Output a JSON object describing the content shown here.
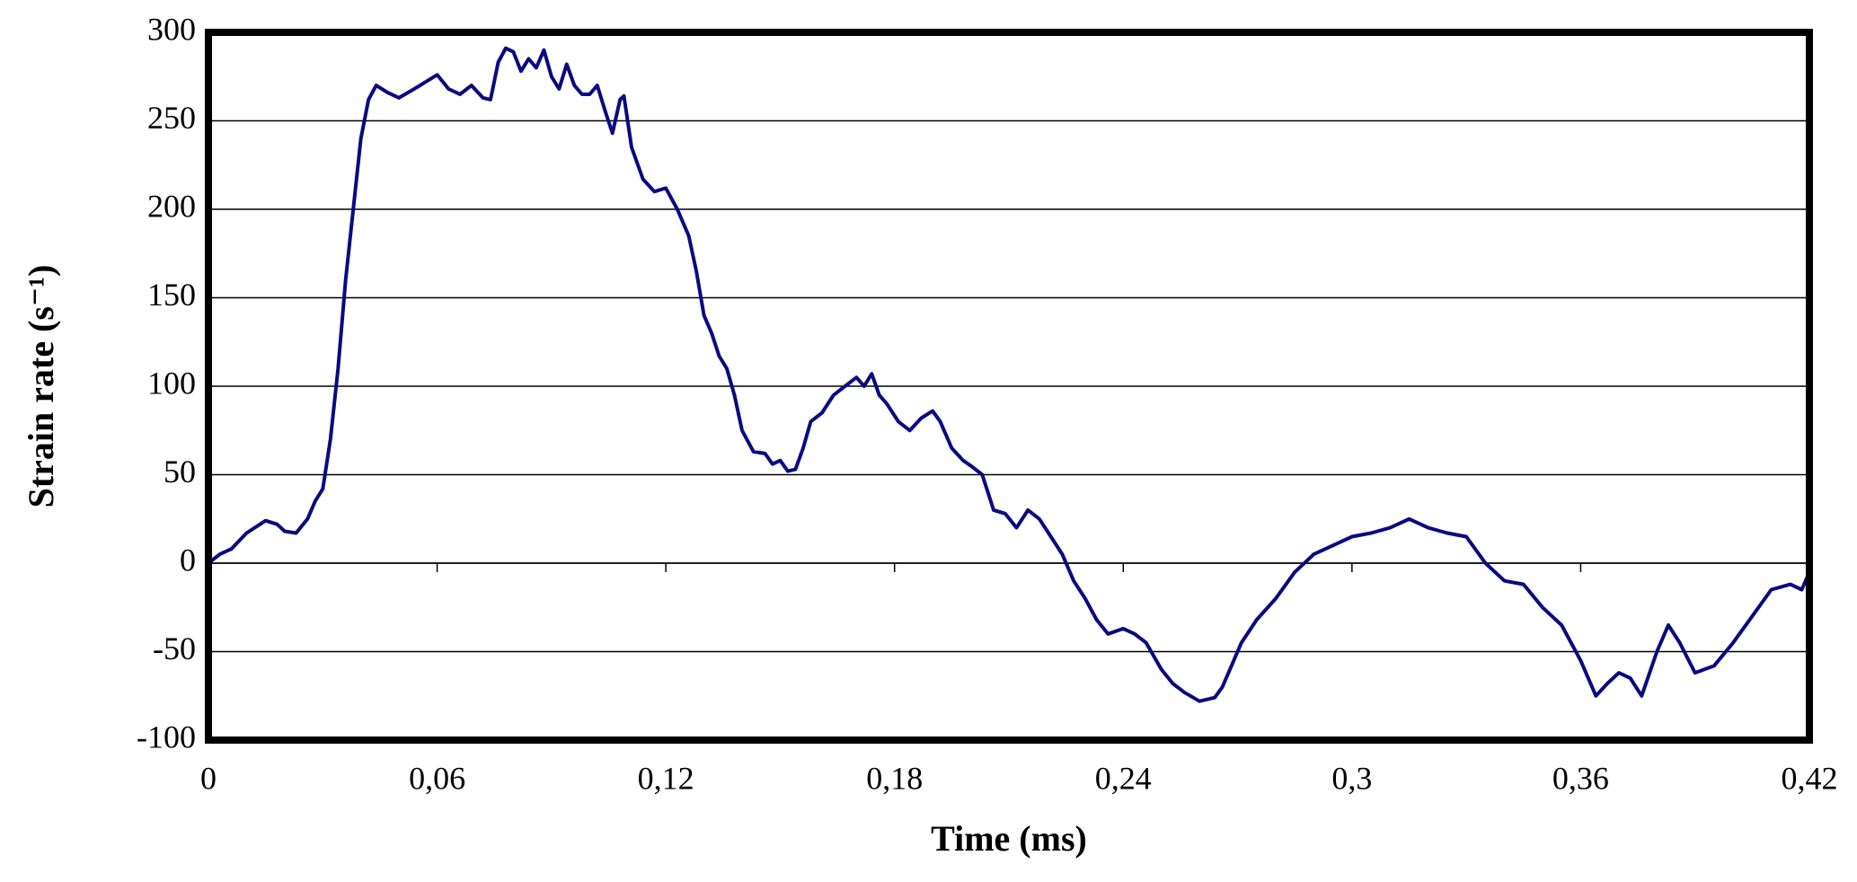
{
  "chart_data": {
    "type": "line",
    "xlabel": "Time (ms)",
    "ylabel": "Strain rate (s⁻¹)",
    "xlim": [
      0,
      0.42
    ],
    "xticks": [
      0,
      {
        "value": 0.06,
        "label": "0,06"
      },
      {
        "value": 0.12,
        "label": "0,12"
      },
      {
        "value": 0.18,
        "label": "0,18"
      },
      {
        "value": 0.24,
        "label": "0,24"
      },
      {
        "value": 0.3,
        "label": "0,3"
      },
      {
        "value": 0.36,
        "label": "0,36"
      },
      {
        "value": 0.42,
        "label": "0,42"
      }
    ],
    "ylim": [
      -100,
      300
    ],
    "yticks": [
      -100,
      -50,
      0,
      50,
      100,
      150,
      200,
      250,
      300
    ],
    "grid": true,
    "series": [
      {
        "color": "#0a0a80",
        "x": [
          0,
          0.003,
          0.006,
          0.01,
          0.015,
          0.018,
          0.02,
          0.023,
          0.026,
          0.028,
          0.03,
          0.032,
          0.034,
          0.036,
          0.038,
          0.04,
          0.042,
          0.044,
          0.047,
          0.05,
          0.054,
          0.057,
          0.06,
          0.063,
          0.066,
          0.069,
          0.072,
          0.074,
          0.076,
          0.078,
          0.08,
          0.082,
          0.084,
          0.086,
          0.088,
          0.09,
          0.092,
          0.094,
          0.096,
          0.098,
          0.1,
          0.102,
          0.104,
          0.106,
          0.108,
          0.109,
          0.111,
          0.114,
          0.117,
          0.12,
          0.123,
          0.126,
          0.128,
          0.13,
          0.132,
          0.134,
          0.136,
          0.138,
          0.14,
          0.143,
          0.146,
          0.148,
          0.15,
          0.152,
          0.154,
          0.156,
          0.158,
          0.161,
          0.164,
          0.167,
          0.17,
          0.172,
          0.174,
          0.176,
          0.178,
          0.181,
          0.184,
          0.187,
          0.19,
          0.192,
          0.195,
          0.198,
          0.2,
          0.203,
          0.206,
          0.209,
          0.212,
          0.215,
          0.218,
          0.221,
          0.224,
          0.227,
          0.23,
          0.233,
          0.236,
          0.24,
          0.243,
          0.246,
          0.25,
          0.253,
          0.256,
          0.26,
          0.264,
          0.266,
          0.268,
          0.271,
          0.275,
          0.28,
          0.285,
          0.29,
          0.295,
          0.3,
          0.305,
          0.31,
          0.315,
          0.32,
          0.325,
          0.33,
          0.335,
          0.34,
          0.345,
          0.35,
          0.355,
          0.36,
          0.364,
          0.367,
          0.37,
          0.373,
          0.376,
          0.38,
          0.383,
          0.386,
          0.39,
          0.395,
          0.4,
          0.405,
          0.41,
          0.415,
          0.418,
          0.42
        ],
        "values": [
          0,
          5,
          8,
          17,
          24,
          22,
          18,
          17,
          25,
          35,
          42,
          70,
          110,
          160,
          200,
          240,
          262,
          270,
          266,
          263,
          268,
          272,
          276,
          268,
          265,
          270,
          263,
          262,
          283,
          291,
          289,
          278,
          285,
          280,
          290,
          275,
          268,
          282,
          270,
          265,
          265,
          270,
          256,
          243,
          262,
          264,
          235,
          217,
          210,
          212,
          200,
          185,
          165,
          140,
          130,
          117,
          110,
          95,
          75,
          63,
          62,
          56,
          58,
          52,
          53,
          65,
          80,
          85,
          95,
          100,
          105,
          100,
          107,
          95,
          90,
          80,
          75,
          82,
          86,
          80,
          65,
          58,
          55,
          50,
          30,
          28,
          20,
          30,
          25,
          15,
          5,
          -10,
          -20,
          -32,
          -40,
          -37,
          -40,
          -45,
          -60,
          -68,
          -73,
          -78,
          -76,
          -70,
          -60,
          -45,
          -32,
          -20,
          -5,
          5,
          10,
          15,
          17,
          20,
          25,
          20,
          17,
          15,
          0,
          -10,
          -12,
          -25,
          -35,
          -55,
          -75,
          -68,
          -62,
          -65,
          -75,
          -50,
          -35,
          -45,
          -62,
          -58,
          -45,
          -30,
          -15,
          -12,
          -15,
          -5
        ]
      }
    ]
  }
}
